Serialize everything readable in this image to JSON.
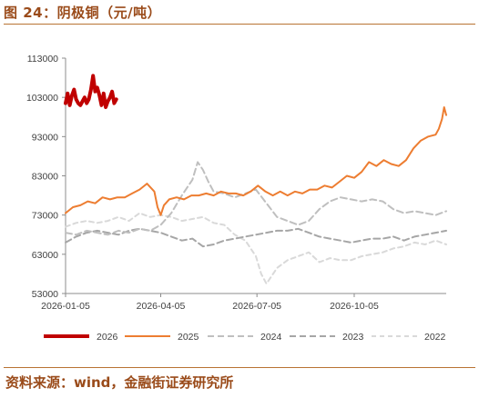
{
  "header": {
    "title": "图 24：阴极铜（元/吨）"
  },
  "footer": {
    "source": "资料来源：wind，金融街证券研究所"
  },
  "chart_data": {
    "type": "line",
    "title": "阴极铜（元/吨）",
    "ylim": [
      53000,
      113000
    ],
    "yticks": [
      53000,
      63000,
      73000,
      83000,
      93000,
      103000,
      113000
    ],
    "ytick_labels": [
      "53000",
      "63000",
      "73000",
      "83000",
      "93000",
      "103000",
      "113000"
    ],
    "xlim": [
      "2026-01-05",
      "2026-12-31"
    ],
    "xticks": [
      "2026-01-05",
      "2026-04-05",
      "2026-07-05",
      "2026-10-05"
    ],
    "xtick_labels": [
      "2026-01-05",
      "2026-04-05",
      "2026-07-05",
      "2026-10-05"
    ],
    "grid": false,
    "legend_position": "bottom",
    "series": [
      {
        "name": "2026",
        "color": "#c00000",
        "style": "solid",
        "width": 4,
        "x": [
          "2026-01-05",
          "2026-01-07",
          "2026-01-09",
          "2026-01-11",
          "2026-01-13",
          "2026-01-15",
          "2026-01-17",
          "2026-01-19",
          "2026-01-21",
          "2026-01-23",
          "2026-01-25",
          "2026-01-27",
          "2026-01-29",
          "2026-01-31",
          "2026-02-02",
          "2026-02-04",
          "2026-02-06",
          "2026-02-08",
          "2026-02-10",
          "2026-02-12",
          "2026-02-14",
          "2026-02-16",
          "2026-02-18",
          "2026-02-20",
          "2026-02-22"
        ],
        "y": [
          101500,
          104000,
          101000,
          103500,
          105000,
          102500,
          101500,
          101000,
          102000,
          103000,
          101500,
          102500,
          105000,
          108500,
          104500,
          105500,
          103500,
          101000,
          104000,
          100500,
          102000,
          103000,
          104500,
          101500,
          102500
        ]
      },
      {
        "name": "2025",
        "color": "#ed7d31",
        "style": "solid",
        "width": 2,
        "x": [
          "2026-01-05",
          "2026-01-12",
          "2026-01-19",
          "2026-01-26",
          "2026-02-02",
          "2026-02-09",
          "2026-02-16",
          "2026-02-23",
          "2026-03-02",
          "2026-03-09",
          "2026-03-16",
          "2026-03-23",
          "2026-03-30",
          "2026-04-02",
          "2026-04-05",
          "2026-04-08",
          "2026-04-13",
          "2026-04-20",
          "2026-04-27",
          "2026-05-04",
          "2026-05-11",
          "2026-05-18",
          "2026-05-25",
          "2026-06-01",
          "2026-06-08",
          "2026-06-15",
          "2026-06-22",
          "2026-06-29",
          "2026-07-06",
          "2026-07-13",
          "2026-07-20",
          "2026-07-27",
          "2026-08-03",
          "2026-08-10",
          "2026-08-17",
          "2026-08-24",
          "2026-08-31",
          "2026-09-07",
          "2026-09-14",
          "2026-09-21",
          "2026-09-28",
          "2026-10-05",
          "2026-10-12",
          "2026-10-19",
          "2026-10-26",
          "2026-11-02",
          "2026-11-09",
          "2026-11-16",
          "2026-11-23",
          "2026-11-30",
          "2026-12-07",
          "2026-12-14",
          "2026-12-21",
          "2026-12-24",
          "2026-12-27",
          "2026-12-29",
          "2026-12-31"
        ],
        "y": [
          73500,
          75000,
          75500,
          76500,
          76000,
          77500,
          77000,
          77500,
          77500,
          78500,
          79500,
          81000,
          79000,
          75000,
          73000,
          75500,
          77000,
          77500,
          77000,
          78000,
          78000,
          78500,
          78000,
          79000,
          78500,
          78500,
          78000,
          79000,
          80500,
          79000,
          78000,
          79000,
          78000,
          79000,
          78500,
          79500,
          79500,
          80500,
          80000,
          81500,
          83000,
          82500,
          84000,
          86500,
          85500,
          87000,
          86000,
          85500,
          87000,
          90000,
          92000,
          93000,
          93500,
          95000,
          97500,
          100500,
          98500
        ]
      },
      {
        "name": "2024",
        "color": "#bfbfbf",
        "style": "dashed",
        "width": 2,
        "x": [
          "2026-01-05",
          "2026-01-15",
          "2026-01-25",
          "2026-02-04",
          "2026-02-14",
          "2026-02-24",
          "2026-03-06",
          "2026-03-16",
          "2026-03-26",
          "2026-04-05",
          "2026-04-15",
          "2026-04-25",
          "2026-05-05",
          "2026-05-10",
          "2026-05-15",
          "2026-05-20",
          "2026-05-25",
          "2026-06-04",
          "2026-06-14",
          "2026-06-24",
          "2026-07-04",
          "2026-07-14",
          "2026-07-24",
          "2026-08-03",
          "2026-08-13",
          "2026-08-23",
          "2026-09-02",
          "2026-09-12",
          "2026-09-22",
          "2026-10-02",
          "2026-10-12",
          "2026-10-22",
          "2026-11-01",
          "2026-11-11",
          "2026-11-21",
          "2026-12-01",
          "2026-12-11",
          "2026-12-21",
          "2026-12-31"
        ],
        "y": [
          68500,
          68000,
          69000,
          68500,
          68000,
          69000,
          68500,
          69500,
          69000,
          70500,
          73500,
          78000,
          82000,
          86500,
          84500,
          81500,
          79000,
          78500,
          77500,
          78500,
          79500,
          76000,
          72500,
          71500,
          70500,
          71500,
          74500,
          76500,
          77500,
          77000,
          76500,
          77000,
          76500,
          74500,
          73500,
          74000,
          73500,
          73000,
          74000
        ]
      },
      {
        "name": "2023",
        "color": "#a6a6a6",
        "style": "dashed",
        "width": 2,
        "x": [
          "2026-01-05",
          "2026-01-15",
          "2026-01-25",
          "2026-02-04",
          "2026-02-14",
          "2026-02-24",
          "2026-03-06",
          "2026-03-16",
          "2026-03-26",
          "2026-04-05",
          "2026-04-15",
          "2026-04-25",
          "2026-05-05",
          "2026-05-15",
          "2026-05-25",
          "2026-06-04",
          "2026-06-14",
          "2026-06-24",
          "2026-07-04",
          "2026-07-14",
          "2026-07-24",
          "2026-08-03",
          "2026-08-13",
          "2026-08-23",
          "2026-09-02",
          "2026-09-12",
          "2026-09-22",
          "2026-10-02",
          "2026-10-12",
          "2026-10-22",
          "2026-11-01",
          "2026-11-11",
          "2026-11-21",
          "2026-12-01",
          "2026-12-11",
          "2026-12-21",
          "2026-12-31"
        ],
        "y": [
          66000,
          67500,
          68500,
          69000,
          68500,
          68000,
          69000,
          69500,
          69000,
          68500,
          67500,
          66500,
          67000,
          65000,
          65500,
          66500,
          67000,
          67500,
          68000,
          68500,
          69000,
          69000,
          69500,
          68500,
          67500,
          67000,
          66500,
          66000,
          66500,
          67000,
          67000,
          67500,
          66500,
          67500,
          68000,
          68500,
          69000
        ]
      },
      {
        "name": "2022",
        "color": "#d9d9d9",
        "style": "dashed",
        "width": 2,
        "x": [
          "2026-01-05",
          "2026-01-15",
          "2026-01-25",
          "2026-02-04",
          "2026-02-14",
          "2026-02-24",
          "2026-03-06",
          "2026-03-16",
          "2026-03-26",
          "2026-04-05",
          "2026-04-15",
          "2026-04-25",
          "2026-05-05",
          "2026-05-15",
          "2026-05-25",
          "2026-06-04",
          "2026-06-14",
          "2026-06-24",
          "2026-07-04",
          "2026-07-09",
          "2026-07-14",
          "2026-07-19",
          "2026-07-24",
          "2026-08-03",
          "2026-08-13",
          "2026-08-23",
          "2026-09-02",
          "2026-09-12",
          "2026-09-22",
          "2026-10-02",
          "2026-10-12",
          "2026-10-22",
          "2026-11-01",
          "2026-11-11",
          "2026-11-21",
          "2026-12-01",
          "2026-12-11",
          "2026-12-21",
          "2026-12-31"
        ],
        "y": [
          70000,
          71000,
          71500,
          71000,
          71500,
          72500,
          71500,
          73500,
          72500,
          73000,
          72500,
          71500,
          72000,
          72500,
          71000,
          70500,
          68000,
          66500,
          62500,
          58000,
          55500,
          57500,
          59500,
          61500,
          62500,
          63500,
          61000,
          62000,
          61500,
          61500,
          62500,
          63000,
          63500,
          64500,
          65000,
          66000,
          65500,
          66500,
          65500
        ]
      }
    ]
  }
}
